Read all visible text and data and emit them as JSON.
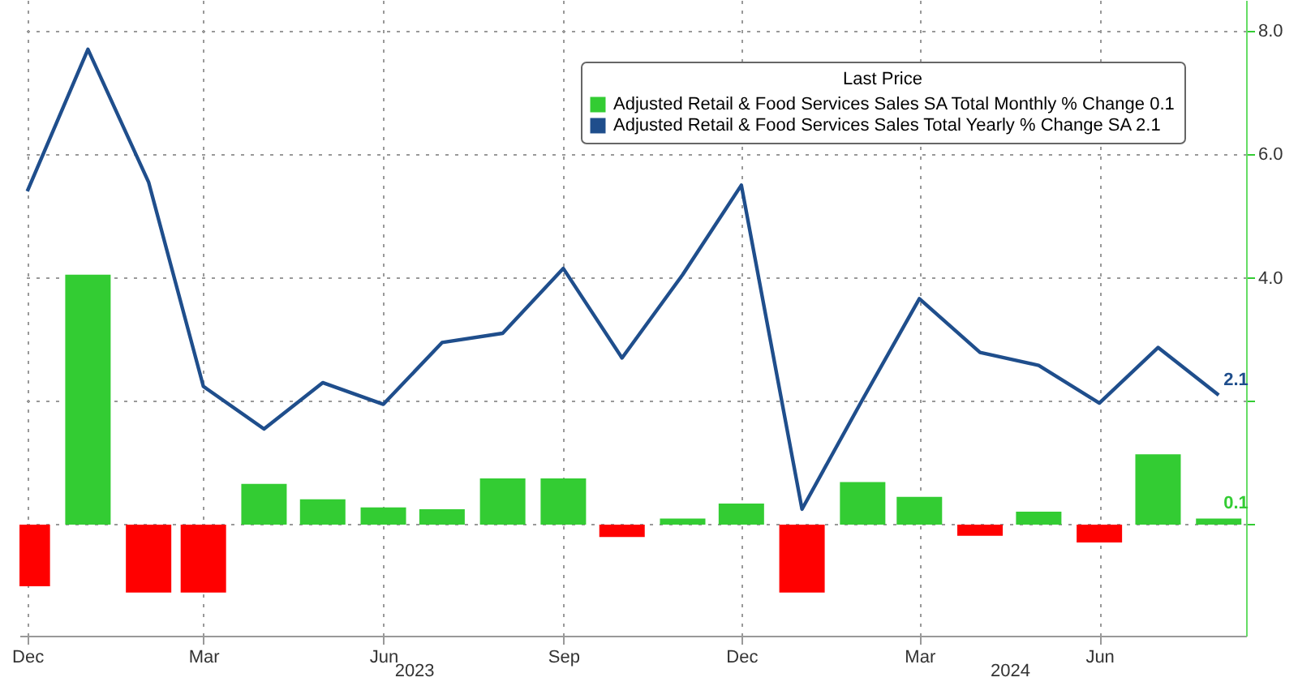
{
  "chart_data": {
    "type": "bar",
    "x": [
      "2022-12",
      "2023-01",
      "2023-02",
      "2023-03",
      "2023-04",
      "2023-05",
      "2023-06",
      "2023-07",
      "2023-08",
      "2023-09",
      "2023-10",
      "2023-11",
      "2023-12",
      "2024-01",
      "2024-02",
      "2024-03",
      "2024-04",
      "2024-05",
      "2024-06",
      "2024-07",
      "2024-08"
    ],
    "xlim": [
      "2022-11-27",
      "2024-08-15"
    ],
    "xticks": [
      {
        "value": "2022-12",
        "label": "Dec"
      },
      {
        "value": "2023-03",
        "label": "Mar"
      },
      {
        "value": "2023-06",
        "label": "Jun"
      },
      {
        "value": "2023-09",
        "label": "Sep"
      },
      {
        "value": "2023-12",
        "label": "Dec"
      },
      {
        "value": "2024-03",
        "label": "Mar"
      },
      {
        "value": "2024-06",
        "label": "Jun"
      }
    ],
    "ylim": [
      -1.8,
      8.5
    ],
    "yticks": [
      {
        "value": 0,
        "label": null
      },
      {
        "value": 2,
        "label": null
      },
      {
        "value": 4,
        "label": "4.0"
      },
      {
        "value": 6,
        "label": "6.0"
      },
      {
        "value": 8,
        "label": "8.0"
      }
    ],
    "legend_title": "Last Price",
    "legend": "top right",
    "grid": true,
    "annotations": [
      "2023",
      "2024"
    ],
    "series": [
      {
        "name": "Adjusted Retail & Food Services Sales SA Total Monthly % Change 0.1",
        "color": "#33cc33",
        "colors": [
          "#ff0000",
          "#33cc33",
          "#ff0000",
          "#ff0000",
          "#33cc33",
          "#33cc33",
          "#33cc33",
          "#33cc33",
          "#33cc33",
          "#33cc33",
          "#ff0000",
          "#33cc33",
          "#33cc33",
          "#ff0000",
          "#33cc33",
          "#33cc33",
          "#ff0000",
          "#33cc33",
          "#ff0000",
          "#33cc33",
          "#33cc33"
        ],
        "values": [
          -1.0,
          4.05,
          -1.1,
          -1.1,
          0.66,
          0.41,
          0.28,
          0.25,
          0.75,
          0.75,
          -0.2,
          0.1,
          0.34,
          -1.1,
          0.69,
          0.45,
          -0.18,
          0.21,
          -0.29,
          1.14,
          0.1
        ],
        "value_labels": [
          null,
          null,
          null,
          null,
          null,
          null,
          null,
          null,
          null,
          null,
          null,
          null,
          null,
          null,
          null,
          null,
          null,
          null,
          null,
          null,
          "0.1"
        ]
      },
      {
        "name": "Adjusted Retail & Food Services Sales Total Yearly % Change SA 2.1",
        "type": "line",
        "color": "#1f4e8c",
        "values": [
          5.4,
          7.7,
          5.55,
          2.24,
          1.55,
          2.3,
          1.95,
          2.95,
          3.1,
          4.15,
          2.7,
          4.05,
          5.5,
          0.25,
          2.03,
          3.66,
          2.79,
          2.58,
          1.97,
          2.87,
          2.1
        ],
        "value_labels": [
          null,
          null,
          null,
          null,
          null,
          null,
          null,
          null,
          null,
          null,
          null,
          null,
          null,
          null,
          null,
          null,
          null,
          null,
          null,
          null,
          "2.1"
        ]
      }
    ]
  }
}
